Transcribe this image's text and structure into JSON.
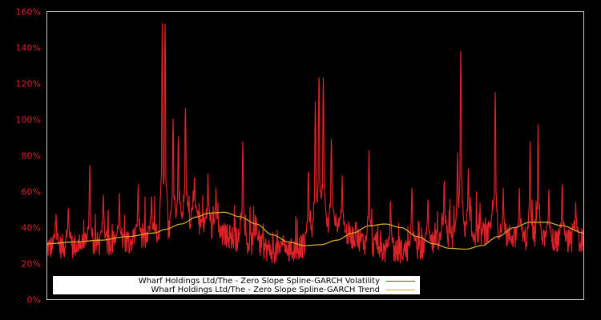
{
  "chart_data": {
    "type": "line",
    "title": "",
    "xlabel": "",
    "ylabel": "",
    "ylim": [
      0,
      160
    ],
    "yticks": [
      "0%",
      "20%",
      "40%",
      "60%",
      "80%",
      "100%",
      "120%",
      "140%",
      "160%"
    ],
    "ytick_values": [
      0,
      20,
      40,
      60,
      80,
      100,
      120,
      140,
      160
    ],
    "grid": false,
    "legend_position": "lower-left inside plot",
    "background": "#000000",
    "tick_label_color": "#e0202a",
    "axis_color": "#c8c8c8",
    "series": [
      {
        "name": "Wharf Holdings Ltd/The - Zero Slope Spline-GARCH Volatility",
        "color": "#dd2228",
        "x_norm": [
          0.0,
          0.05,
          0.1,
          0.15,
          0.18,
          0.21,
          0.24,
          0.27,
          0.3,
          0.33,
          0.36,
          0.39,
          0.42,
          0.45,
          0.48,
          0.51,
          0.54,
          0.57,
          0.6,
          0.63,
          0.66,
          0.69,
          0.72,
          0.75,
          0.78,
          0.81,
          0.84,
          0.87,
          0.9,
          0.93,
          0.96,
          1.0
        ],
        "baseline_values": [
          26,
          27,
          28,
          30,
          31,
          34,
          40,
          42,
          38,
          33,
          30,
          28,
          24,
          24,
          27,
          38,
          38,
          32,
          28,
          24,
          24,
          26,
          28,
          32,
          34,
          34,
          33,
          32,
          31,
          30,
          30,
          30
        ],
        "spikes": [
          {
            "x": 0.017,
            "v": 49
          },
          {
            "x": 0.04,
            "v": 54
          },
          {
            "x": 0.08,
            "v": 77
          },
          {
            "x": 0.105,
            "v": 61
          },
          {
            "x": 0.135,
            "v": 60
          },
          {
            "x": 0.17,
            "v": 66
          },
          {
            "x": 0.195,
            "v": 60
          },
          {
            "x": 0.215,
            "v": 156
          },
          {
            "x": 0.22,
            "v": 158
          },
          {
            "x": 0.235,
            "v": 102
          },
          {
            "x": 0.245,
            "v": 95
          },
          {
            "x": 0.258,
            "v": 111
          },
          {
            "x": 0.275,
            "v": 73
          },
          {
            "x": 0.3,
            "v": 70
          },
          {
            "x": 0.315,
            "v": 63
          },
          {
            "x": 0.365,
            "v": 89
          },
          {
            "x": 0.39,
            "v": 47
          },
          {
            "x": 0.44,
            "v": 38
          },
          {
            "x": 0.487,
            "v": 76
          },
          {
            "x": 0.5,
            "v": 110
          },
          {
            "x": 0.507,
            "v": 131
          },
          {
            "x": 0.515,
            "v": 125
          },
          {
            "x": 0.53,
            "v": 92
          },
          {
            "x": 0.55,
            "v": 69
          },
          {
            "x": 0.6,
            "v": 83
          },
          {
            "x": 0.64,
            "v": 58
          },
          {
            "x": 0.68,
            "v": 64
          },
          {
            "x": 0.71,
            "v": 59
          },
          {
            "x": 0.74,
            "v": 70
          },
          {
            "x": 0.765,
            "v": 83
          },
          {
            "x": 0.771,
            "v": 141
          },
          {
            "x": 0.785,
            "v": 74
          },
          {
            "x": 0.83,
            "v": 57
          },
          {
            "x": 0.835,
            "v": 117
          },
          {
            "x": 0.85,
            "v": 62
          },
          {
            "x": 0.88,
            "v": 64
          },
          {
            "x": 0.9,
            "v": 88
          },
          {
            "x": 0.915,
            "v": 99
          },
          {
            "x": 0.935,
            "v": 62
          },
          {
            "x": 0.96,
            "v": 68
          },
          {
            "x": 0.985,
            "v": 55
          }
        ]
      },
      {
        "name": "Wharf Holdings Ltd/The - Zero Slope Spline-GARCH Trend",
        "color": "#d4a82a",
        "x_norm": [
          0.0,
          0.05,
          0.1,
          0.15,
          0.2,
          0.22,
          0.25,
          0.28,
          0.3,
          0.33,
          0.36,
          0.39,
          0.42,
          0.45,
          0.48,
          0.51,
          0.54,
          0.57,
          0.6,
          0.63,
          0.66,
          0.69,
          0.72,
          0.75,
          0.78,
          0.81,
          0.84,
          0.87,
          0.9,
          0.93,
          0.96,
          1.0
        ],
        "values": [
          31,
          32,
          33,
          35,
          37,
          39,
          42,
          46,
          48,
          48.5,
          46,
          42,
          36,
          32,
          30,
          30.5,
          33,
          37,
          41,
          42,
          40,
          35,
          31,
          28.5,
          28,
          30,
          35,
          40,
          43,
          43,
          41,
          37
        ]
      }
    ]
  },
  "legend": {
    "items": [
      {
        "label": "Wharf Holdings Ltd/The - Zero Slope Spline-GARCH Volatility",
        "color": "#dd2228"
      },
      {
        "label": "Wharf Holdings Ltd/The - Zero Slope Spline-GARCH Trend",
        "color": "#d4a82a"
      }
    ]
  }
}
